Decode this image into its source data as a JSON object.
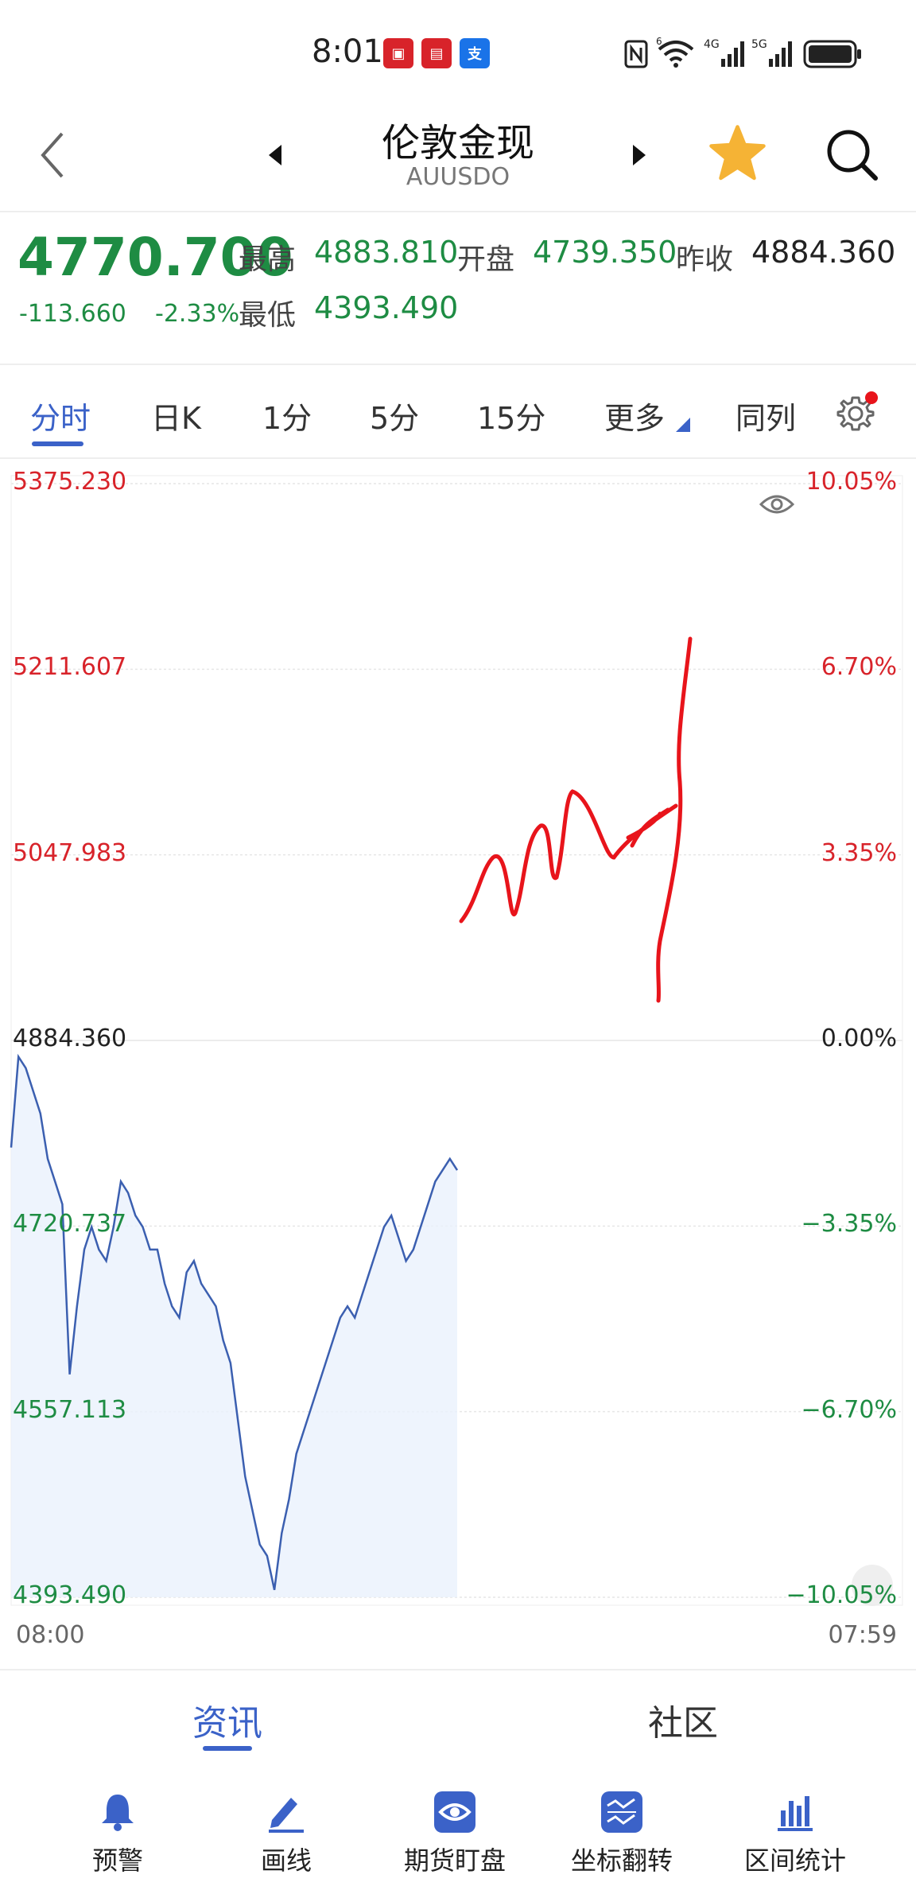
{
  "status_bar": {
    "time": "8:01",
    "icons": [
      "app-icon-1",
      "app-icon-2",
      "alipay-icon",
      "nfc-icon",
      "wifi-icon",
      "4g-signal-icon",
      "5g-signal-icon",
      "battery-icon"
    ],
    "wifi_label": "6",
    "net1_label": "4G",
    "net2_label": "5G"
  },
  "header": {
    "title": "伦敦金现",
    "code": "AUUSDO"
  },
  "quote": {
    "last_price": "4770.700",
    "change": "-113.660",
    "change_pct": "-2.33%",
    "high_label": "最高",
    "high": "4883.810",
    "open_label": "开盘",
    "open": "4739.350",
    "prev_close_label": "昨收",
    "prev_close": "4884.360",
    "low_label": "最低",
    "low": "4393.490"
  },
  "tabs": [
    "分时",
    "日K",
    "1分",
    "5分",
    "15分",
    "更多",
    "同列"
  ],
  "chart": {
    "left_axis": [
      "5375.230",
      "5211.607",
      "5047.983",
      "4884.360",
      "4720.737",
      "4557.113",
      "4393.490"
    ],
    "right_axis": [
      "10.05%",
      "6.70%",
      "3.35%",
      "0.00%",
      "−3.35%",
      "−6.70%",
      "−10.05%"
    ],
    "time_start": "08:00",
    "time_end": "07:59"
  },
  "chart_data": {
    "type": "line",
    "ylim": [
      4393.49,
      5375.23
    ],
    "reference": 4884.36,
    "x_label_start": "08:00",
    "x_label_end": "07:59",
    "series": [
      {
        "values": [
          4790,
          4870,
          4860,
          4840,
          4820,
          4780,
          4760,
          4740,
          4590,
          4650,
          4700,
          4720,
          4700,
          4690,
          4720,
          4760,
          4750,
          4730,
          4720,
          4700,
          4700,
          4670,
          4650,
          4640,
          4680,
          4690,
          4670,
          4660,
          4650,
          4620,
          4600,
          4550,
          4500,
          4470,
          4440,
          4430,
          4400,
          4450,
          4480,
          4520,
          4540,
          4560,
          4580,
          4600,
          4620,
          4640,
          4650,
          4640,
          4660,
          4680,
          4700,
          4720,
          4730,
          4710,
          4690,
          4700,
          4720,
          4740,
          4760,
          4770,
          4780,
          4770
        ]
      }
    ]
  },
  "news_bar": {
    "tab1": "资讯",
    "tab2": "社区"
  },
  "toolbar": [
    {
      "label": "预警",
      "icon": "bell-icon"
    },
    {
      "label": "画线",
      "icon": "pen-icon"
    },
    {
      "label": "期货盯盘",
      "icon": "eye-icon"
    },
    {
      "label": "坐标翻转",
      "icon": "flip-chart-icon"
    },
    {
      "label": "区间统计",
      "icon": "bar-stats-icon"
    }
  ],
  "colors": {
    "accent": "#3b62c8",
    "down": "#1e8c43",
    "up": "#d8232a",
    "line": "#3b5fb0",
    "annotation": "#e8141b"
  }
}
